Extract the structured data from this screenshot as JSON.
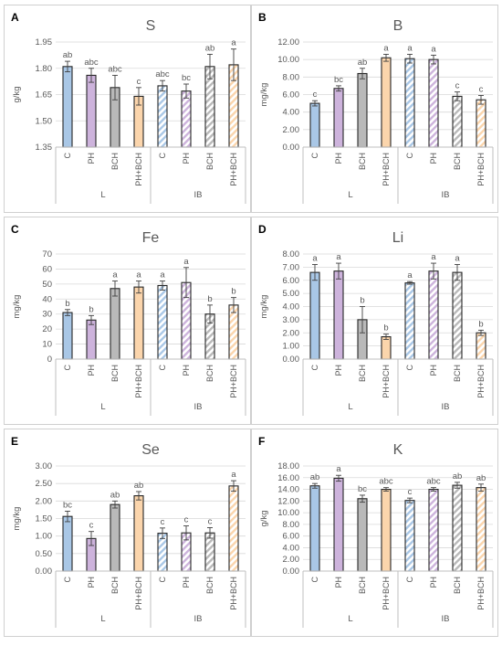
{
  "chart_data": [
    {
      "type": "bar",
      "panel_label": "A",
      "title": "S",
      "ylabel": "g/kg",
      "ylim": [
        1.35,
        1.95
      ],
      "yticks": [
        "1.35",
        "1.50",
        "1.65",
        "1.80",
        "1.95"
      ],
      "categories": [
        "C",
        "PH",
        "BCH",
        "PH+BCH",
        "C",
        "PH",
        "BCH",
        "PH+BCH"
      ],
      "groups": [
        "L",
        "IB"
      ],
      "values": [
        1.81,
        1.76,
        1.69,
        1.64,
        1.7,
        1.67,
        1.81,
        1.82
      ],
      "errors": [
        0.03,
        0.04,
        0.07,
        0.05,
        0.03,
        0.04,
        0.07,
        0.09
      ],
      "letters": [
        "ab",
        "abc",
        "abc",
        "c",
        "abc",
        "bc",
        "ab",
        "a"
      ],
      "grid": true
    },
    {
      "type": "bar",
      "panel_label": "B",
      "title": "B",
      "ylabel": "mg/kg",
      "ylim": [
        0,
        12
      ],
      "yticks": [
        "0.00",
        "2.00",
        "4.00",
        "6.00",
        "8.00",
        "10.00",
        "12.00"
      ],
      "categories": [
        "C",
        "PH",
        "BCH",
        "PH+BCH",
        "C",
        "PH",
        "BCH",
        "PH+BCH"
      ],
      "groups": [
        "L",
        "IB"
      ],
      "values": [
        5.0,
        6.7,
        8.4,
        10.2,
        10.1,
        10.0,
        5.8,
        5.4
      ],
      "errors": [
        0.3,
        0.3,
        0.6,
        0.4,
        0.5,
        0.5,
        0.5,
        0.5
      ],
      "letters": [
        "c",
        "bc",
        "ab",
        "a",
        "a",
        "a",
        "c",
        "c"
      ],
      "grid": true
    },
    {
      "type": "bar",
      "panel_label": "C",
      "title": "Fe",
      "ylabel": "mg/kg",
      "ylim": [
        0,
        70
      ],
      "yticks": [
        "0",
        "10",
        "20",
        "30",
        "40",
        "50",
        "60",
        "70"
      ],
      "categories": [
        "C",
        "PH",
        "BCH",
        "PH+BCH",
        "C",
        "PH",
        "BCH",
        "PH+BCH"
      ],
      "groups": [
        "L",
        "IB"
      ],
      "values": [
        31,
        26,
        47,
        48,
        49,
        51,
        30,
        36
      ],
      "errors": [
        2,
        3,
        5,
        4,
        3,
        10,
        6,
        5
      ],
      "letters": [
        "b",
        "b",
        "a",
        "a",
        "a",
        "a",
        "b",
        "b"
      ],
      "grid": true
    },
    {
      "type": "bar",
      "panel_label": "D",
      "title": "Li",
      "ylabel": "mg/kg",
      "ylim": [
        0,
        8
      ],
      "yticks": [
        "0.00",
        "1.00",
        "2.00",
        "3.00",
        "4.00",
        "5.00",
        "6.00",
        "7.00",
        "8.00"
      ],
      "categories": [
        "C",
        "PH",
        "BCH",
        "PH+BCH",
        "C",
        "PH",
        "BCH",
        "PH+BCH"
      ],
      "groups": [
        "L",
        "IB"
      ],
      "values": [
        6.6,
        6.7,
        3.0,
        1.7,
        5.8,
        6.7,
        6.6,
        2.0
      ],
      "errors": [
        0.6,
        0.6,
        1.0,
        0.2,
        0.1,
        0.6,
        0.6,
        0.2
      ],
      "letters": [
        "a",
        "a",
        "b",
        "b",
        "a",
        "a",
        "a",
        "b"
      ],
      "grid": true
    },
    {
      "type": "bar",
      "panel_label": "E",
      "title": "Se",
      "ylabel": "mg/kg",
      "ylim": [
        0,
        3
      ],
      "yticks": [
        "0.00",
        "0.50",
        "1.00",
        "1.50",
        "2.00",
        "2.50",
        "3.00"
      ],
      "categories": [
        "C",
        "PH",
        "BCH",
        "PH+BCH",
        "C",
        "PH",
        "BCH",
        "PH+BCH"
      ],
      "groups": [
        "L",
        "IB"
      ],
      "values": [
        1.56,
        0.93,
        1.9,
        2.15,
        1.08,
        1.09,
        1.09,
        2.43
      ],
      "errors": [
        0.15,
        0.2,
        0.1,
        0.12,
        0.15,
        0.2,
        0.15,
        0.15
      ],
      "letters": [
        "bc",
        "c",
        "ab",
        "ab",
        "c",
        "c",
        "c",
        "a"
      ],
      "grid": true
    },
    {
      "type": "bar",
      "panel_label": "F",
      "title": "K",
      "ylabel": "g/kg",
      "ylim": [
        0,
        18
      ],
      "yticks": [
        "0.00",
        "2.00",
        "4.00",
        "6.00",
        "8.00",
        "10.00",
        "12.00",
        "14.00",
        "16.00",
        "18.00"
      ],
      "categories": [
        "C",
        "PH",
        "BCH",
        "PH+BCH",
        "C",
        "PH",
        "BCH",
        "PH+BCH"
      ],
      "groups": [
        "L",
        "IB"
      ],
      "values": [
        14.6,
        15.9,
        12.4,
        14.0,
        12.1,
        14.0,
        14.7,
        14.3
      ],
      "errors": [
        0.4,
        0.5,
        0.6,
        0.3,
        0.4,
        0.3,
        0.5,
        0.6
      ],
      "letters": [
        "ab",
        "a",
        "bc",
        "abc",
        "c",
        "abc",
        "ab",
        "ab"
      ],
      "grid": true
    }
  ],
  "colors": {
    "C": "#a9c7e6",
    "PH": "#cdb3dc",
    "BCH": "#b9b9b9",
    "PH+BCH": "#fbd5ac",
    "edge": "#262626",
    "grid": "#d9d9d9",
    "axis_text": "#595959"
  }
}
